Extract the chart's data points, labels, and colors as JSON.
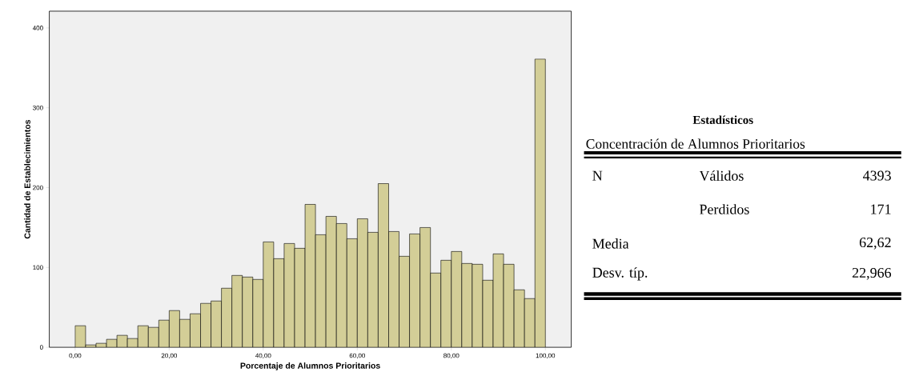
{
  "chart_data": [
    {
      "type": "histogram",
      "xlabel": "Porcentaje de Alumnos Prioritarios",
      "ylabel": "Cantidad de Establecimientos",
      "color": "#d3ce97",
      "bins": [
        0,
        2.22,
        4.44,
        6.67,
        8.89,
        11.11,
        13.33,
        15.56,
        17.78,
        20,
        22.22,
        24.44,
        26.67,
        28.89,
        31.11,
        33.33,
        35.56,
        37.78,
        40,
        42.22,
        44.44,
        46.67,
        48.89,
        51.11,
        53.33,
        55.56,
        57.78,
        60,
        62.22,
        64.44,
        66.67,
        68.89,
        71.11,
        73.33,
        75.56,
        77.78,
        80,
        82.22,
        84.44,
        86.67,
        88.89,
        91.11,
        93.33,
        95.56,
        97.78,
        100
      ],
      "values": [
        27,
        3,
        5,
        10,
        15,
        11,
        27,
        25,
        34,
        46,
        35,
        42,
        55,
        58,
        74,
        90,
        88,
        85,
        132,
        111,
        130,
        124,
        179,
        141,
        164,
        155,
        136,
        161,
        144,
        205,
        145,
        114,
        142,
        150,
        93,
        109,
        120,
        105,
        104,
        84,
        117,
        104,
        72,
        61,
        361
      ],
      "xlim": [
        -5.5,
        105.5
      ],
      "ylim": [
        0,
        421
      ],
      "xticks": [
        {
          "value": 0,
          "label": "0,00"
        },
        {
          "value": 20,
          "label": "20,00"
        },
        {
          "value": 40,
          "label": "40,00"
        },
        {
          "value": 60,
          "label": "60,00"
        },
        {
          "value": 80,
          "label": "80,00"
        },
        {
          "value": 100,
          "label": "100,00"
        }
      ],
      "yticks": [
        0,
        100,
        200,
        300,
        400
      ]
    },
    {
      "type": "other",
      "title": "Estadísticos",
      "subtitle": "Concentración de Alumnos Prioritarios",
      "annotations": [
        "N",
        "Válidos",
        "4393",
        "Perdidos",
        "171",
        "Media",
        "62,62",
        "Desv. típ.",
        "22,966"
      ]
    }
  ]
}
